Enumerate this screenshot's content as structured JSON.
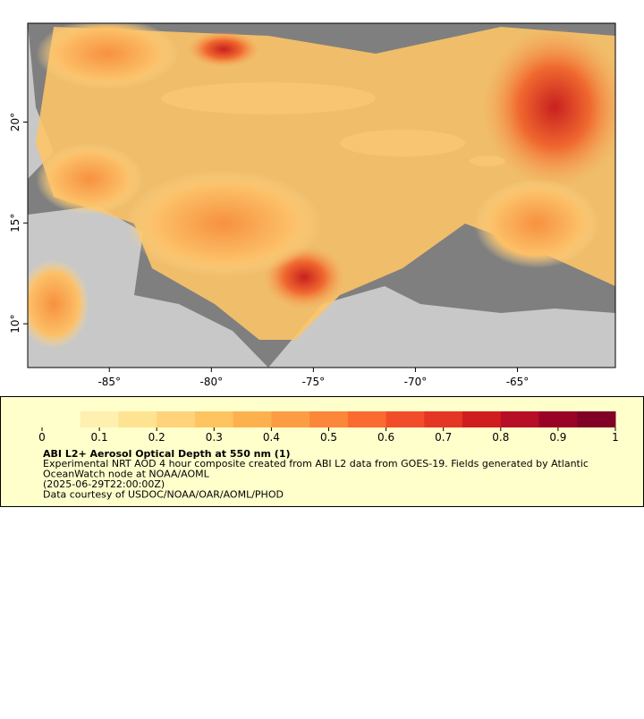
{
  "map": {
    "lon_range": [
      -89,
      -60.2
    ],
    "lat_range": [
      7.83,
      24.9
    ],
    "lon_ticks": [
      {
        "value": -85,
        "label": "-85°"
      },
      {
        "value": -80,
        "label": "-80°"
      },
      {
        "value": -75,
        "label": "-75°"
      },
      {
        "value": -70,
        "label": "-70°"
      },
      {
        "value": -65,
        "label": "-65°"
      }
    ],
    "lat_ticks": [
      {
        "value": 10,
        "label": "10°"
      },
      {
        "value": 15,
        "label": "15°"
      },
      {
        "value": 20,
        "label": "20°"
      }
    ]
  },
  "colorbar": {
    "range": [
      0,
      1
    ],
    "ticks": [
      0,
      0.1,
      0.2,
      0.3,
      0.4,
      0.5,
      0.6,
      0.7,
      0.8,
      0.9,
      1
    ],
    "colors": [
      "#ffffcc",
      "#fff0b0",
      "#fee391",
      "#fed37a",
      "#fec45f",
      "#fdb14e",
      "#fd9d43",
      "#fc863a",
      "#fb6a31",
      "#f24d2a",
      "#e53524",
      "#d01d20",
      "#b70d26",
      "#990426",
      "#800026"
    ]
  },
  "legend": {
    "title": "ABI L2+ Aerosol Optical Depth at 550 nm (1)",
    "lines": [
      "Experimental NRT AOD 4 hour composite created from ABI L2 data from GOES-19. Fields generated by Atlantic",
      "OceanWatch node at NOAA/AOML",
      "(2025-06-29T22:00:00Z)",
      "Data courtesy of USDOC/NOAA/OAR/AOML/PHOD"
    ]
  }
}
